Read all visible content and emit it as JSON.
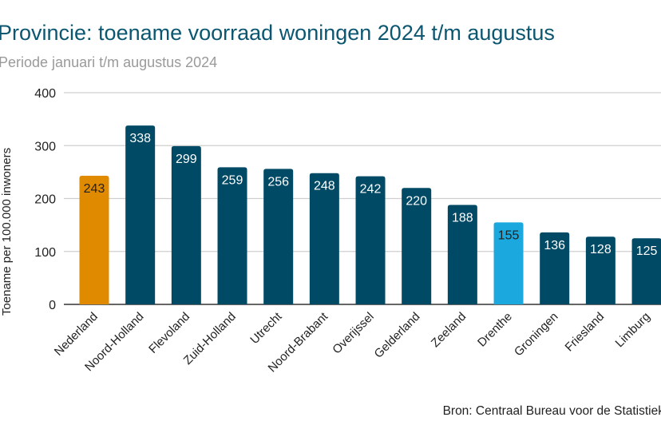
{
  "chart_data": {
    "type": "bar",
    "title": "Provincie: toename voorraad woningen 2024 t/m augustus",
    "subtitle": "Periode januari t/m augustus 2024",
    "xlabel": "",
    "ylabel": "Toename per 100.000 inwoners",
    "ylim": [
      0,
      400
    ],
    "yticks": [
      0,
      100,
      200,
      300,
      400
    ],
    "grid": true,
    "categories": [
      "Nederland",
      "Noord-Holland",
      "Flevoland",
      "Zuid-Holland",
      "Utrecht",
      "Noord-Brabant",
      "Overijssel",
      "Gelderland",
      "Zeeland",
      "Drenthe",
      "Groningen",
      "Friesland",
      "Limburg"
    ],
    "values": [
      243,
      338,
      299,
      259,
      256,
      248,
      242,
      220,
      188,
      155,
      136,
      128,
      125
    ],
    "colors": [
      "#e08a00",
      "#004a66",
      "#004a66",
      "#004a66",
      "#004a66",
      "#004a66",
      "#004a66",
      "#004a66",
      "#004a66",
      "#1ba8df",
      "#004a66",
      "#004a66",
      "#004a66"
    ],
    "label_colors": [
      "#222222",
      "#ffffff",
      "#ffffff",
      "#ffffff",
      "#ffffff",
      "#ffffff",
      "#ffffff",
      "#ffffff",
      "#ffffff",
      "#222222",
      "#ffffff",
      "#ffffff",
      "#ffffff"
    ],
    "source": "Bron: Centraal Bureau voor de Statistiek"
  }
}
